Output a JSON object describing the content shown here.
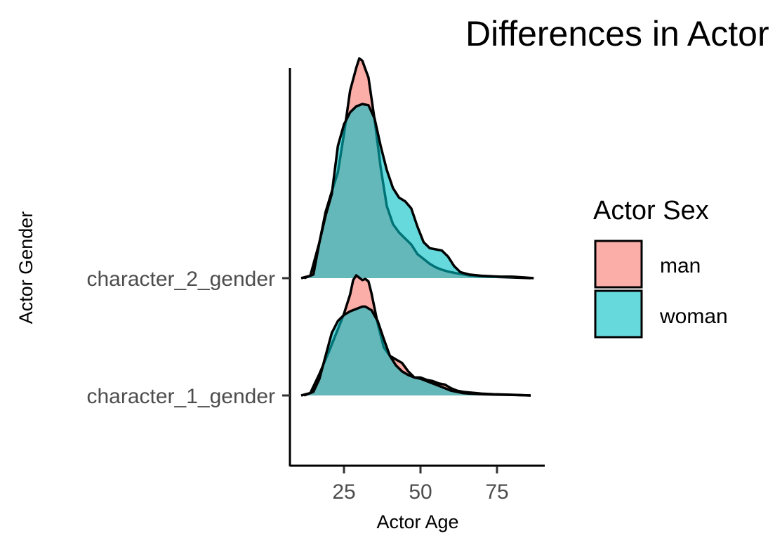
{
  "chart_data": {
    "type": "ridgeline_density",
    "title": "Differences in Actor",
    "xlabel": "Actor Age",
    "ylabel": "Actor Gender",
    "x_ticks": [
      25,
      50,
      75
    ],
    "xlim": [
      8,
      90
    ],
    "categories": [
      "character_1_gender",
      "character_2_gender"
    ],
    "legend": {
      "title": "Actor Sex",
      "position": "right",
      "entries": [
        {
          "label": "man",
          "color": "#F8766D"
        },
        {
          "label": "woman",
          "color": "#00BFC4"
        }
      ]
    },
    "series": [
      {
        "category": "character_1_gender",
        "name": "man",
        "density": [
          [
            11,
            0
          ],
          [
            14,
            0.02
          ],
          [
            17,
            0.18
          ],
          [
            20,
            0.36
          ],
          [
            23,
            0.55
          ],
          [
            25,
            0.68
          ],
          [
            27,
            0.84
          ],
          [
            28,
            0.96
          ],
          [
            29,
            1.0
          ],
          [
            30,
            0.98
          ],
          [
            31,
            0.96
          ],
          [
            32,
            0.97
          ],
          [
            33,
            0.95
          ],
          [
            34,
            0.85
          ],
          [
            36,
            0.6
          ],
          [
            38,
            0.4
          ],
          [
            40,
            0.33
          ],
          [
            42,
            0.3
          ],
          [
            44,
            0.27
          ],
          [
            46,
            0.2
          ],
          [
            48,
            0.15
          ],
          [
            50,
            0.15
          ],
          [
            52,
            0.13
          ],
          [
            54,
            0.12
          ],
          [
            56,
            0.1
          ],
          [
            58,
            0.09
          ],
          [
            60,
            0.06
          ],
          [
            62,
            0.04
          ],
          [
            64,
            0.03
          ],
          [
            66,
            0.025
          ],
          [
            70,
            0.015
          ],
          [
            74,
            0.01
          ],
          [
            80,
            0.006
          ],
          [
            86,
            0
          ]
        ]
      },
      {
        "category": "character_1_gender",
        "name": "woman",
        "density": [
          [
            12,
            0
          ],
          [
            15,
            0.03
          ],
          [
            17,
            0.14
          ],
          [
            19,
            0.33
          ],
          [
            21,
            0.52
          ],
          [
            23,
            0.62
          ],
          [
            25,
            0.67
          ],
          [
            27,
            0.7
          ],
          [
            29,
            0.72
          ],
          [
            31,
            0.74
          ],
          [
            32,
            0.74
          ],
          [
            34,
            0.71
          ],
          [
            36,
            0.62
          ],
          [
            38,
            0.47
          ],
          [
            40,
            0.33
          ],
          [
            42,
            0.25
          ],
          [
            44,
            0.2
          ],
          [
            46,
            0.17
          ],
          [
            48,
            0.15
          ],
          [
            50,
            0.14
          ],
          [
            52,
            0.12
          ],
          [
            54,
            0.1
          ],
          [
            56,
            0.08
          ],
          [
            58,
            0.06
          ],
          [
            60,
            0.04
          ],
          [
            62,
            0.03
          ],
          [
            64,
            0.02
          ],
          [
            66,
            0.015
          ],
          [
            70,
            0.01
          ],
          [
            74,
            0.007
          ],
          [
            80,
            0.004
          ],
          [
            86,
            0
          ]
        ]
      },
      {
        "category": "character_2_gender",
        "name": "man",
        "density": [
          [
            11,
            0
          ],
          [
            14,
            0.02
          ],
          [
            17,
            0.3
          ],
          [
            19,
            0.55
          ],
          [
            21,
            0.72
          ],
          [
            23,
            0.88
          ],
          [
            25,
            1.2
          ],
          [
            27,
            1.56
          ],
          [
            29,
            1.75
          ],
          [
            30,
            1.83
          ],
          [
            31,
            1.81
          ],
          [
            32,
            1.74
          ],
          [
            33,
            1.67
          ],
          [
            35,
            1.32
          ],
          [
            37,
            0.92
          ],
          [
            39,
            0.6
          ],
          [
            41,
            0.45
          ],
          [
            43,
            0.38
          ],
          [
            45,
            0.33
          ],
          [
            47,
            0.28
          ],
          [
            49,
            0.2
          ],
          [
            51,
            0.16
          ],
          [
            53,
            0.12
          ],
          [
            55,
            0.09
          ],
          [
            57,
            0.07
          ],
          [
            59,
            0.055
          ],
          [
            62,
            0.04
          ],
          [
            66,
            0.022
          ],
          [
            72,
            0.012
          ],
          [
            80,
            0.006
          ],
          [
            86,
            0
          ]
        ]
      },
      {
        "category": "character_2_gender",
        "name": "woman",
        "density": [
          [
            12,
            0
          ],
          [
            15,
            0.03
          ],
          [
            17,
            0.3
          ],
          [
            19,
            0.52
          ],
          [
            21,
            0.7
          ],
          [
            23,
            1.1
          ],
          [
            25,
            1.28
          ],
          [
            27,
            1.38
          ],
          [
            29,
            1.43
          ],
          [
            31,
            1.45
          ],
          [
            33,
            1.44
          ],
          [
            35,
            1.33
          ],
          [
            37,
            1.1
          ],
          [
            39,
            0.9
          ],
          [
            41,
            0.75
          ],
          [
            43,
            0.67
          ],
          [
            45,
            0.64
          ],
          [
            47,
            0.58
          ],
          [
            49,
            0.43
          ],
          [
            51,
            0.3
          ],
          [
            53,
            0.25
          ],
          [
            55,
            0.24
          ],
          [
            57,
            0.23
          ],
          [
            59,
            0.18
          ],
          [
            61,
            0.1
          ],
          [
            63,
            0.05
          ],
          [
            66,
            0.03
          ],
          [
            70,
            0.02
          ],
          [
            76,
            0.012
          ],
          [
            80,
            0.012
          ],
          [
            84,
            0.006
          ],
          [
            87,
            0
          ]
        ]
      }
    ]
  }
}
